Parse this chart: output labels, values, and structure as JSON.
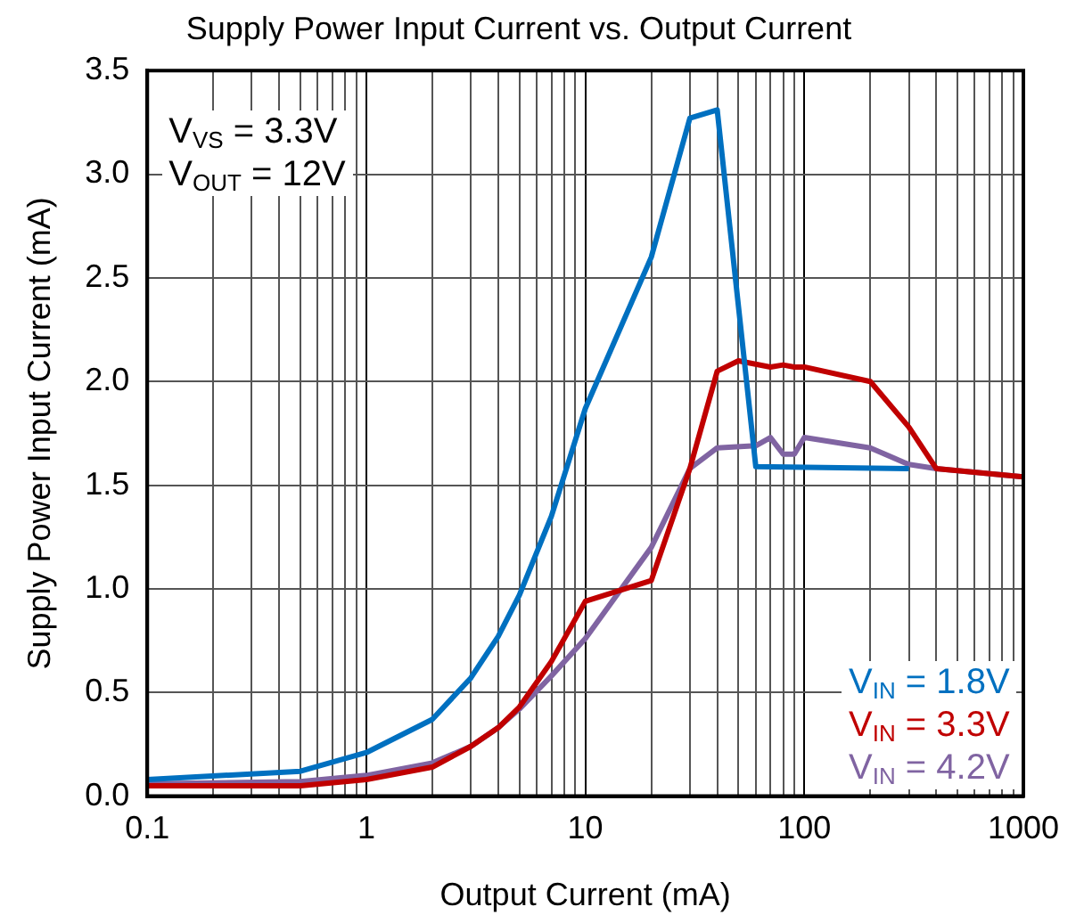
{
  "chart_data": {
    "type": "line",
    "title": "Supply Power Input Current vs. Output Current",
    "xlabel": "Output Current (mA)",
    "ylabel": "Supply Power Input Current (mA)",
    "log": "x",
    "xlim": [
      0.1,
      1000
    ],
    "xticks": [
      0.1,
      1,
      10,
      100,
      1000
    ],
    "ylim": [
      0,
      3.5
    ],
    "yticks": [
      {
        "value": 0,
        "label": "0.0"
      },
      {
        "value": 0.5,
        "label": "0.5"
      },
      {
        "value": 1,
        "label": "1.0"
      },
      {
        "value": 1.5,
        "label": "1.5"
      },
      {
        "value": 2,
        "label": "2.0"
      },
      {
        "value": 2.5,
        "label": "2.5"
      },
      {
        "value": 3,
        "label": "3.0"
      },
      {
        "value": 3.5,
        "label": "3.5"
      }
    ],
    "grid": true,
    "legend": "bottom right",
    "marker": "none",
    "line_style": "solid",
    "annotations": [
      "V$_{VS}$ = 3.3V",
      "V$_{OUT}$ = 12V"
    ],
    "series": [
      {
        "name": "V$_{IN}$ = 1.8V",
        "color": "#0070c0",
        "x": [
          0.1,
          0.5,
          1,
          2,
          3,
          4,
          5,
          7,
          10,
          20,
          30,
          40,
          60,
          300
        ],
        "values": [
          0.08,
          0.12,
          0.21,
          0.37,
          0.57,
          0.77,
          0.97,
          1.35,
          1.87,
          2.6,
          3.27,
          3.31,
          1.59,
          1.58
        ]
      },
      {
        "name": "V$_{IN}$ = 3.3V",
        "color": "#c00000",
        "x": [
          0.1,
          0.5,
          1,
          2,
          3,
          4,
          5,
          7,
          10,
          20,
          30,
          40,
          50,
          70,
          80,
          90,
          100,
          200,
          300,
          400,
          1000
        ],
        "values": [
          0.05,
          0.05,
          0.08,
          0.14,
          0.24,
          0.33,
          0.43,
          0.65,
          0.94,
          1.04,
          1.58,
          2.05,
          2.1,
          2.07,
          2.08,
          2.07,
          2.07,
          2.0,
          1.78,
          1.58,
          1.54
        ]
      },
      {
        "name": "V$_{IN}$ = 4.2V",
        "color": "#8064a2",
        "x": [
          0.1,
          0.5,
          1,
          2,
          3,
          4,
          5,
          7,
          10,
          20,
          30,
          40,
          60,
          70,
          80,
          90,
          100,
          200,
          300,
          400,
          1000
        ],
        "values": [
          0.06,
          0.07,
          0.1,
          0.16,
          0.24,
          0.33,
          0.42,
          0.58,
          0.76,
          1.2,
          1.58,
          1.68,
          1.69,
          1.73,
          1.65,
          1.65,
          1.73,
          1.68,
          1.6,
          1.58,
          1.54
        ]
      }
    ]
  }
}
